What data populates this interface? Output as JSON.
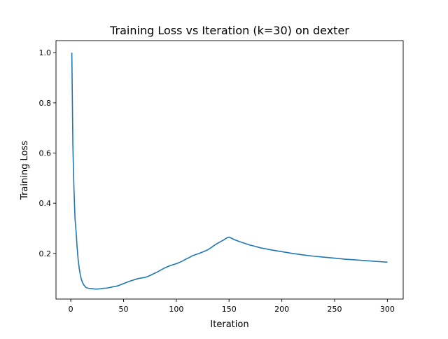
{
  "chart_data": {
    "type": "line",
    "title": "Training Loss vs Iteration (k=30) on dexter",
    "xlabel": "Iteration",
    "ylabel": "Training Loss",
    "xlim": [
      -14,
      315
    ],
    "ylim": [
      0.018,
      1.048
    ],
    "xticks": [
      0,
      50,
      100,
      150,
      200,
      250,
      300
    ],
    "yticks": [
      0.2,
      0.4,
      0.6,
      0.8,
      1.0
    ],
    "xtick_labels": [
      "0",
      "50",
      "100",
      "150",
      "200",
      "250",
      "300"
    ],
    "ytick_labels": [
      "0.2",
      "0.4",
      "0.6",
      "0.8",
      "1.0"
    ],
    "grid": false,
    "legend": "none",
    "series": [
      {
        "color": "#1f77b4",
        "points": [
          [
            1,
            1.0
          ],
          [
            2,
            0.63
          ],
          [
            3,
            0.46
          ],
          [
            4,
            0.34
          ],
          [
            5,
            0.29
          ],
          [
            6,
            0.225
          ],
          [
            7,
            0.175
          ],
          [
            8,
            0.14
          ],
          [
            9,
            0.115
          ],
          [
            10,
            0.097
          ],
          [
            11,
            0.085
          ],
          [
            12,
            0.077
          ],
          [
            13,
            0.071
          ],
          [
            14,
            0.066
          ],
          [
            15,
            0.063
          ],
          [
            17,
            0.061
          ],
          [
            19,
            0.06
          ],
          [
            21,
            0.059
          ],
          [
            23,
            0.058
          ],
          [
            25,
            0.058
          ],
          [
            28,
            0.059
          ],
          [
            31,
            0.061
          ],
          [
            34,
            0.062
          ],
          [
            37,
            0.064
          ],
          [
            40,
            0.067
          ],
          [
            43,
            0.069
          ],
          [
            46,
            0.073
          ],
          [
            49,
            0.078
          ],
          [
            52,
            0.083
          ],
          [
            55,
            0.088
          ],
          [
            58,
            0.092
          ],
          [
            61,
            0.096
          ],
          [
            64,
            0.1
          ],
          [
            67,
            0.102
          ],
          [
            70,
            0.104
          ],
          [
            73,
            0.108
          ],
          [
            76,
            0.114
          ],
          [
            79,
            0.12
          ],
          [
            82,
            0.126
          ],
          [
            85,
            0.133
          ],
          [
            88,
            0.14
          ],
          [
            91,
            0.146
          ],
          [
            94,
            0.151
          ],
          [
            97,
            0.155
          ],
          [
            100,
            0.159
          ],
          [
            103,
            0.164
          ],
          [
            106,
            0.17
          ],
          [
            109,
            0.177
          ],
          [
            112,
            0.183
          ],
          [
            115,
            0.19
          ],
          [
            118,
            0.195
          ],
          [
            121,
            0.199
          ],
          [
            124,
            0.204
          ],
          [
            127,
            0.209
          ],
          [
            130,
            0.215
          ],
          [
            133,
            0.223
          ],
          [
            136,
            0.232
          ],
          [
            139,
            0.24
          ],
          [
            142,
            0.247
          ],
          [
            145,
            0.254
          ],
          [
            148,
            0.262
          ],
          [
            150,
            0.265
          ],
          [
            155,
            0.255
          ],
          [
            160,
            0.247
          ],
          [
            165,
            0.24
          ],
          [
            170,
            0.233
          ],
          [
            175,
            0.228
          ],
          [
            180,
            0.222
          ],
          [
            190,
            0.214
          ],
          [
            200,
            0.207
          ],
          [
            210,
            0.2
          ],
          [
            220,
            0.194
          ],
          [
            230,
            0.189
          ],
          [
            240,
            0.185
          ],
          [
            250,
            0.181
          ],
          [
            260,
            0.177
          ],
          [
            270,
            0.174
          ],
          [
            280,
            0.171
          ],
          [
            290,
            0.168
          ],
          [
            300,
            0.165
          ]
        ]
      }
    ]
  }
}
